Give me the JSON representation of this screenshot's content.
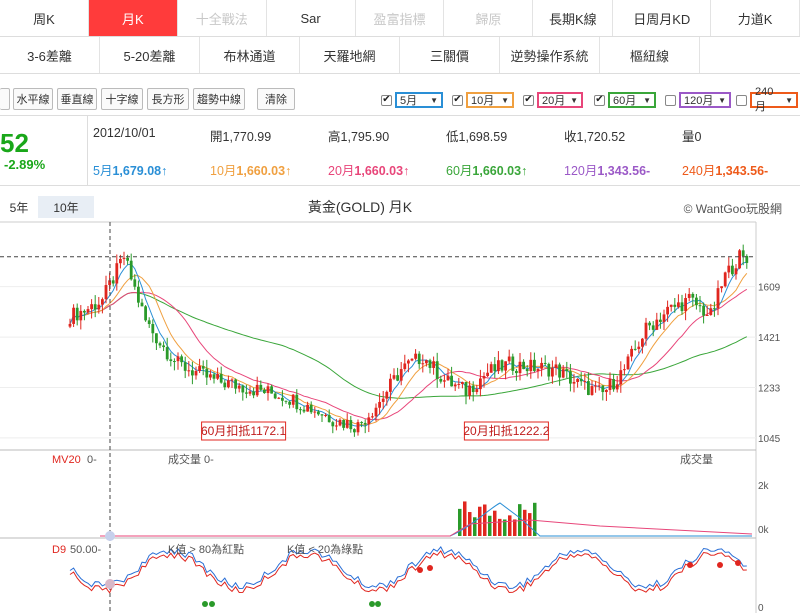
{
  "tabs_row1": [
    {
      "label": "周K",
      "state": "normal"
    },
    {
      "label": "月K",
      "state": "active"
    },
    {
      "label": "十全戰法",
      "state": "disabled"
    },
    {
      "label": "Sar",
      "state": "normal"
    },
    {
      "label": "盈富指標",
      "state": "disabled"
    },
    {
      "label": "歸原",
      "state": "disabled"
    },
    {
      "label": "長期K線",
      "state": "normal"
    },
    {
      "label": "日周月KD",
      "state": "normal"
    },
    {
      "label": "力道K",
      "state": "normal"
    }
  ],
  "tabs_row2": [
    {
      "label": "3-6差離"
    },
    {
      "label": "5-20差離"
    },
    {
      "label": "布林通道"
    },
    {
      "label": "天羅地網"
    },
    {
      "label": "三關價"
    },
    {
      "label": "逆勢操作系統"
    },
    {
      "label": "樞紐線"
    }
  ],
  "toolbar": {
    "tools": [
      "水平線",
      "垂直線",
      "十字線",
      "長方形",
      "趨勢中線"
    ],
    "clear_label": "清除",
    "ma_selectors": [
      {
        "label": "5月",
        "checked": true,
        "color": "#2a8fd6"
      },
      {
        "label": "10月",
        "checked": true,
        "color": "#f0a040"
      },
      {
        "label": "20月",
        "checked": true,
        "color": "#e8467a"
      },
      {
        "label": "60月",
        "checked": true,
        "color": "#3aa63a"
      },
      {
        "label": "120月",
        "checked": false,
        "color": "#9b59c7"
      },
      {
        "label": "240月",
        "checked": false,
        "color": "#ee5a1a"
      }
    ]
  },
  "info": {
    "price": "52",
    "change": "-2.89%",
    "date": "2012/10/01",
    "open_label": "開",
    "open": "1,770.99",
    "high_label": "高",
    "high": "1,795.90",
    "low_label": "低",
    "low": "1,698.59",
    "close_label": "收",
    "close": "1,720.52",
    "vol_label": "量",
    "vol": "0",
    "ma": [
      {
        "label": "5月",
        "value": "1,679.08↑",
        "color": "#2a8fd6"
      },
      {
        "label": "10月",
        "value": "1,660.03↑",
        "color": "#f0a040"
      },
      {
        "label": "20月",
        "value": "1,660.03↑",
        "color": "#e8467a"
      },
      {
        "label": "60月",
        "value": "1,660.03↑",
        "color": "#3aa63a"
      },
      {
        "label": "120月",
        "value": "1,343.56-",
        "color": "#9b59c7"
      },
      {
        "label": "240月",
        "value": "1,343.56-",
        "color": "#ee5a1a"
      }
    ]
  },
  "periods": [
    {
      "label": "5年",
      "active": false
    },
    {
      "label": "10年",
      "active": true
    }
  ],
  "chart_title": "黃金(GOLD) 月K",
  "copyright": "© WantGoo玩股網",
  "chart_data": {
    "type": "candlestick",
    "price_axis_ticks": [
      1609,
      1421,
      1233,
      1045
    ],
    "ylim": [
      1000,
      1850
    ],
    "reference_price": 1720.52,
    "annotations": [
      {
        "text": "60月扣抵1172.1",
        "x_index": 56
      },
      {
        "text": "20月扣抵1222.2",
        "x_index": 129
      }
    ],
    "volume_axis_ticks": [
      "2k",
      "0k"
    ],
    "volume_labels": {
      "mv20": "MV20",
      "mv20_value": "0-",
      "vol_left": "成交量 0-",
      "vol_right": "成交量"
    },
    "kd_axis_ticks": [
      "0"
    ],
    "kd_labels": {
      "d9": "D9",
      "d9_value": "50.00-",
      "high_note": "K值 > 80為紅點",
      "low_note": "K值 < 20為綠點"
    }
  }
}
